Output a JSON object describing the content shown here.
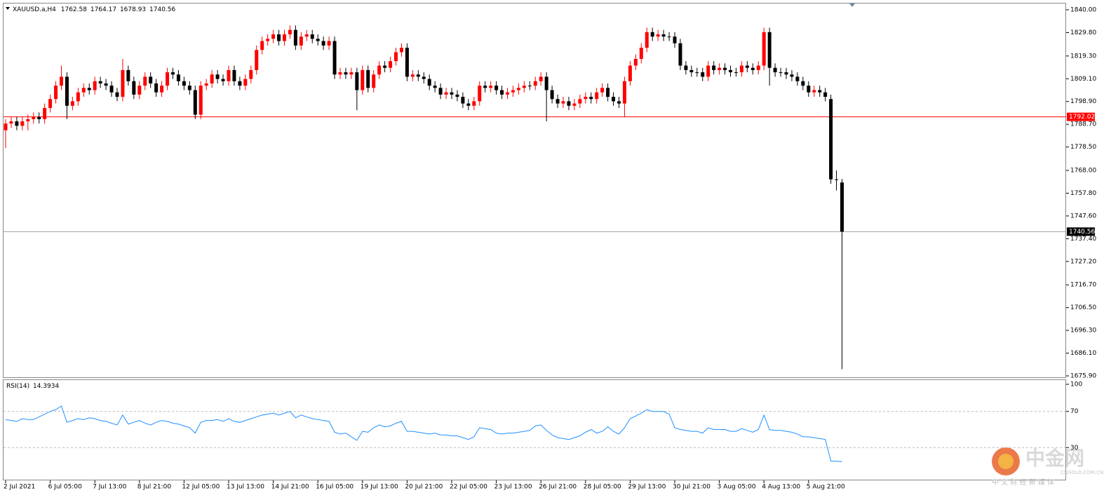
{
  "chart_data": {
    "type": "candlestick",
    "symbol": "XAUUSD.a,H4",
    "x": [
      "2 Jul 2021",
      null,
      null,
      null,
      null,
      null,
      null,
      null,
      "6 Jul 05:00",
      null,
      null,
      null,
      null,
      null,
      null,
      null,
      "7 Jul 13:00",
      null,
      null,
      null,
      null,
      null,
      null,
      null,
      "8 Jul 21:00",
      null,
      null,
      null,
      null,
      null,
      null,
      null,
      "12 Jul 05:00",
      null,
      null,
      null,
      null,
      null,
      null,
      null,
      "13 Jul 13:00",
      null,
      null,
      null,
      null,
      null,
      null,
      null,
      "14 Jul 21:00",
      null,
      null,
      null,
      null,
      null,
      null,
      null,
      "16 Jul 05:00",
      null,
      null,
      null,
      null,
      null,
      null,
      null,
      "19 Jul 13:00",
      null,
      null,
      null,
      null,
      null,
      null,
      null,
      "20 Jul 21:00",
      null,
      null,
      null,
      null,
      null,
      null,
      null,
      "22 Jul 05:00",
      null,
      null,
      null,
      null,
      null,
      null,
      null,
      "23 Jul 13:00",
      null,
      null,
      null,
      null,
      null,
      null,
      null,
      "26 Jul 21:00",
      null,
      null,
      null,
      null,
      null,
      null,
      null,
      "28 Jul 05:00",
      null,
      null,
      null,
      null,
      null,
      null,
      null,
      "29 Jul 13:00",
      null,
      null,
      null,
      null,
      null,
      null,
      null,
      "30 Jul 21:00",
      null,
      null,
      null,
      null,
      null,
      null,
      null,
      "3 Aug 05:00",
      null,
      null,
      null,
      null,
      null,
      null,
      null,
      "4 Aug 13:00",
      null,
      null,
      null,
      null,
      null,
      null,
      null,
      "5 Aug 21:00",
      null,
      null,
      null,
      null,
      null,
      null
    ],
    "open": [
      1786,
      1789,
      1790,
      1788,
      1790,
      1791,
      1792,
      1791,
      1796,
      1800,
      1806,
      1810,
      1797,
      1799,
      1803,
      1805,
      1804,
      1808,
      1807,
      1806,
      1803,
      1801,
      1813,
      1808,
      1802,
      1806,
      1810,
      1807,
      1803,
      1806,
      1812,
      1811,
      1808,
      1806,
      1804,
      1793,
      1806,
      1807,
      1811,
      1809,
      1808,
      1813,
      1808,
      1806,
      1809,
      1813,
      1822,
      1826,
      1827,
      1829,
      1826,
      1829,
      1831,
      1824,
      1828,
      1829,
      1827,
      1826,
      1824,
      1826,
      1811,
      1812,
      1811,
      1812,
      1804,
      1813,
      1805,
      1811,
      1815,
      1814,
      1817,
      1821,
      1823,
      1810,
      1811,
      1810,
      1809,
      1806,
      1805,
      1802,
      1803,
      1802,
      1801,
      1798,
      1797,
      1799,
      1806,
      1805,
      1806,
      1804,
      1802,
      1803,
      1804,
      1805,
      1806,
      1806,
      1808,
      1810,
      1804,
      1800,
      1798,
      1799,
      1797,
      1798,
      1800,
      1801,
      1800,
      1803,
      1805,
      1801,
      1799,
      1798,
      1808,
      1815,
      1818,
      1823,
      1830,
      1828,
      1829,
      1828,
      1828,
      1825,
      1815,
      1813,
      1812,
      1812,
      1810,
      1815,
      1813,
      1814,
      1813,
      1812,
      1812,
      1815,
      1814,
      1813,
      1815,
      1830,
      1814,
      1812,
      1812,
      1811,
      1810,
      1808,
      1806,
      1803,
      1804,
      1803,
      1800,
      1764,
      1762.58
    ],
    "high": [
      1791,
      1792,
      1792,
      1792,
      1793,
      1794,
      1794,
      1798,
      1802,
      1808,
      1815,
      1812,
      1801,
      1805,
      1807,
      1807,
      1810,
      1810,
      1809,
      1808,
      1805,
      1818,
      1815,
      1810,
      1808,
      1812,
      1812,
      1809,
      1808,
      1814,
      1814,
      1813,
      1810,
      1808,
      1806,
      1808,
      1809,
      1813,
      1813,
      1811,
      1815,
      1815,
      1810,
      1811,
      1815,
      1824,
      1828,
      1829,
      1831,
      1831,
      1831,
      1833,
      1833,
      1830,
      1831,
      1831,
      1829,
      1828,
      1828,
      1828,
      1814,
      1814,
      1814,
      1814,
      1815,
      1815,
      1813,
      1817,
      1817,
      1819,
      1823,
      1825,
      1825,
      1813,
      1813,
      1812,
      1811,
      1808,
      1807,
      1805,
      1805,
      1804,
      1803,
      1800,
      1801,
      1808,
      1808,
      1808,
      1808,
      1806,
      1805,
      1806,
      1807,
      1808,
      1808,
      1810,
      1812,
      1812,
      1806,
      1802,
      1801,
      1801,
      1800,
      1802,
      1803,
      1803,
      1805,
      1807,
      1807,
      1803,
      1801,
      1810,
      1817,
      1820,
      1825,
      1832,
      1832,
      1831,
      1831,
      1830,
      1830,
      1827,
      1817,
      1815,
      1814,
      1814,
      1817,
      1817,
      1816,
      1816,
      1815,
      1814,
      1817,
      1817,
      1816,
      1817,
      1832,
      1832,
      1816,
      1814,
      1814,
      1813,
      1812,
      1810,
      1808,
      1806,
      1806,
      1805,
      1802,
      1768,
      1764.17
    ],
    "low": [
      1778,
      1787,
      1786,
      1786,
      1786,
      1789,
      1789,
      1789,
      1794,
      1798,
      1804,
      1791,
      1795,
      1797,
      1801,
      1802,
      1802,
      1805,
      1804,
      1801,
      1799,
      1799,
      1806,
      1800,
      1800,
      1804,
      1805,
      1801,
      1801,
      1804,
      1809,
      1806,
      1804,
      1802,
      1791,
      1791,
      1804,
      1805,
      1807,
      1806,
      1806,
      1806,
      1804,
      1804,
      1807,
      1811,
      1820,
      1824,
      1825,
      1824,
      1824,
      1827,
      1822,
      1822,
      1826,
      1825,
      1824,
      1822,
      1822,
      1809,
      1809,
      1809,
      1809,
      1795,
      1802,
      1803,
      1803,
      1809,
      1812,
      1812,
      1815,
      1819,
      1808,
      1808,
      1808,
      1807,
      1804,
      1803,
      1800,
      1800,
      1800,
      1799,
      1796,
      1795,
      1795,
      1797,
      1803,
      1803,
      1802,
      1800,
      1800,
      1801,
      1802,
      1803,
      1804,
      1804,
      1806,
      1790,
      1798,
      1796,
      1796,
      1795,
      1795,
      1796,
      1798,
      1798,
      1798,
      1801,
      1799,
      1797,
      1796,
      1792,
      1806,
      1813,
      1816,
      1821,
      1826,
      1826,
      1826,
      1826,
      1823,
      1813,
      1811,
      1810,
      1810,
      1808,
      1808,
      1811,
      1811,
      1811,
      1810,
      1810,
      1810,
      1812,
      1811,
      1811,
      1813,
      1806,
      1810,
      1810,
      1809,
      1808,
      1806,
      1804,
      1801,
      1801,
      1801,
      1799,
      1762,
      1759,
      1678.93
    ],
    "close": [
      1789,
      1790,
      1788,
      1790,
      1791,
      1792,
      1791,
      1796,
      1800,
      1806,
      1810,
      1797,
      1799,
      1803,
      1805,
      1804,
      1808,
      1807,
      1806,
      1803,
      1801,
      1813,
      1808,
      1802,
      1806,
      1810,
      1807,
      1803,
      1806,
      1812,
      1811,
      1808,
      1806,
      1804,
      1793,
      1806,
      1807,
      1811,
      1809,
      1808,
      1813,
      1808,
      1806,
      1809,
      1813,
      1822,
      1826,
      1827,
      1829,
      1826,
      1829,
      1831,
      1824,
      1828,
      1829,
      1827,
      1826,
      1824,
      1826,
      1811,
      1812,
      1811,
      1812,
      1804,
      1813,
      1805,
      1811,
      1815,
      1814,
      1817,
      1821,
      1823,
      1810,
      1811,
      1810,
      1809,
      1806,
      1805,
      1802,
      1803,
      1802,
      1801,
      1798,
      1797,
      1799,
      1806,
      1805,
      1806,
      1804,
      1802,
      1803,
      1804,
      1805,
      1806,
      1806,
      1808,
      1810,
      1804,
      1800,
      1798,
      1799,
      1797,
      1798,
      1800,
      1801,
      1800,
      1803,
      1805,
      1801,
      1799,
      1798,
      1808,
      1815,
      1818,
      1823,
      1830,
      1828,
      1829,
      1828,
      1828,
      1825,
      1815,
      1813,
      1812,
      1812,
      1810,
      1815,
      1813,
      1814,
      1813,
      1812,
      1812,
      1815,
      1814,
      1813,
      1815,
      1830,
      1814,
      1812,
      1812,
      1811,
      1810,
      1808,
      1806,
      1803,
      1804,
      1803,
      1801,
      1764,
      1764,
      1740.56
    ],
    "up_color": "#ff0000",
    "down_color": "#000000",
    "ylim": [
      1675.9,
      1840
    ],
    "yticks": [
      {
        "value": 1840,
        "label": "1840.00"
      },
      {
        "value": 1829.8,
        "label": "1829.80"
      },
      {
        "value": 1819.3,
        "label": "1819.30"
      },
      {
        "value": 1809.1,
        "label": "1809.10"
      },
      {
        "value": 1798.9,
        "label": "1798.90"
      },
      {
        "value": 1788.7,
        "label": "1788.70"
      },
      {
        "value": 1778.5,
        "label": "1778.50"
      },
      {
        "value": 1768,
        "label": "1768.00"
      },
      {
        "value": 1757.8,
        "label": "1757.80"
      },
      {
        "value": 1747.6,
        "label": "1747.60"
      },
      {
        "value": 1737.4,
        "label": "1737.40"
      },
      {
        "value": 1727.2,
        "label": "1727.20"
      },
      {
        "value": 1716.7,
        "label": "1716.70"
      },
      {
        "value": 1706.5,
        "label": "1706.50"
      },
      {
        "value": 1696.3,
        "label": "1696.30"
      },
      {
        "value": 1686.1,
        "label": "1686.10"
      },
      {
        "value": 1675.9,
        "label": "1675.90"
      }
    ],
    "hline": {
      "value": 1792.02,
      "color": "#ff0000"
    },
    "rsi": {
      "label": "RSI(14)",
      "color": "#1e90ff",
      "values": [
        61,
        60,
        59,
        62,
        61,
        61,
        64,
        67,
        70,
        72,
        76,
        58,
        60,
        62,
        61,
        63,
        62,
        60,
        59,
        57,
        55,
        66,
        56,
        58,
        60,
        57,
        55,
        58,
        60,
        59,
        57,
        56,
        54,
        52,
        46,
        58,
        60,
        60,
        61,
        59,
        62,
        59,
        58,
        60,
        62,
        64,
        66,
        67,
        68,
        66,
        68,
        70,
        63,
        66,
        64,
        62,
        61,
        60,
        59,
        47,
        45,
        46,
        42,
        38,
        48,
        47,
        52,
        55,
        53,
        54,
        57,
        59,
        48,
        48,
        47,
        46,
        45,
        46,
        44,
        44,
        43,
        43,
        41,
        39,
        42,
        52,
        51,
        50,
        46,
        45,
        46,
        46,
        47,
        48,
        49,
        54,
        55,
        49,
        44,
        41,
        40,
        39,
        41,
        43,
        47,
        50,
        46,
        48,
        53,
        48,
        45,
        52,
        62,
        65,
        68,
        72,
        70,
        70,
        70,
        67,
        52,
        50,
        49,
        48,
        48,
        46,
        52,
        50,
        50,
        50,
        48,
        48,
        51,
        49,
        47,
        50,
        66,
        50,
        49,
        49,
        48,
        47,
        45,
        42,
        42,
        41,
        40,
        39,
        15,
        15,
        14.3934
      ],
      "ylim": [
        0,
        100
      ],
      "yticks": [
        30,
        70,
        100
      ]
    },
    "watermark": {
      "brand": "中金网",
      "site": "CNGOLD.COM.CN",
      "slogan": "中 文 财 经 新 媒 体"
    }
  }
}
